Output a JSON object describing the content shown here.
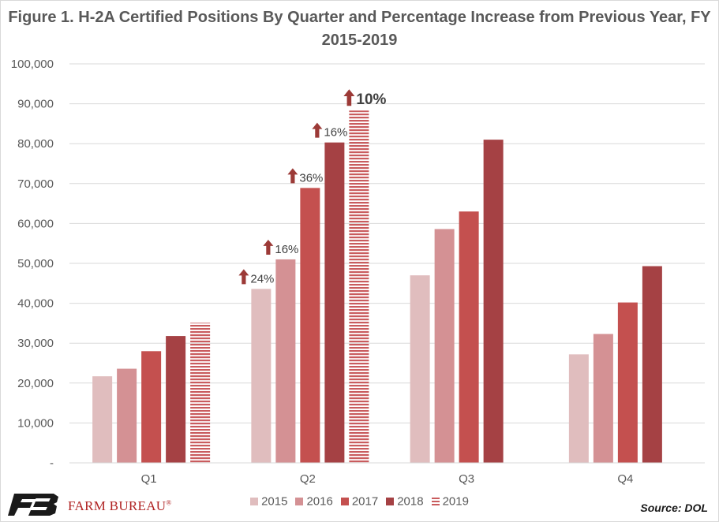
{
  "title": "Figure 1. H-2A Certified Positions By Quarter and Percentage Increase from Previous Year, FY 2015-2019",
  "source": "Source: DOL",
  "logo_text": "FARM BUREAU",
  "logo_mark": "®",
  "colors": {
    "2015": "#e0bdbe",
    "2016": "#d49194",
    "2017": "#c4504f",
    "2018": "#a54144",
    "2019": "#c95c5e",
    "arrow": "#9c3a37",
    "grid": "#d9d9d9",
    "logo": "#b02323"
  },
  "chart_data": {
    "type": "bar",
    "title": "Figure 1. H-2A Certified Positions By Quarter and Percentage Increase from Previous Year, FY 2015-2019",
    "xlabel": "",
    "ylabel": "",
    "ylim": [
      0,
      100000
    ],
    "y_ticks": [
      0,
      10000,
      20000,
      30000,
      40000,
      50000,
      60000,
      70000,
      80000,
      90000,
      100000
    ],
    "y_tick_labels": [
      "-",
      "10,000",
      "20,000",
      "30,000",
      "40,000",
      "50,000",
      "60,000",
      "70,000",
      "80,000",
      "90,000",
      "100,000"
    ],
    "grid": true,
    "legend_position": "bottom",
    "categories": [
      "Q1",
      "Q2",
      "Q3",
      "Q4"
    ],
    "series": [
      {
        "name": "2015",
        "values": [
          21700,
          43600,
          47000,
          27200
        ],
        "pattern": "solid"
      },
      {
        "name": "2016",
        "values": [
          23600,
          51000,
          58600,
          32300
        ],
        "pattern": "solid"
      },
      {
        "name": "2017",
        "values": [
          28000,
          68900,
          63000,
          40200
        ],
        "pattern": "solid"
      },
      {
        "name": "2018",
        "values": [
          31800,
          80300,
          81000,
          49300
        ],
        "pattern": "solid"
      },
      {
        "name": "2019",
        "values": [
          35100,
          88300,
          null,
          null
        ],
        "pattern": "striped"
      }
    ],
    "annotations": [
      {
        "category": "Q2",
        "series": "2015",
        "label": "24%",
        "bold": false
      },
      {
        "category": "Q2",
        "series": "2016",
        "label": "16%",
        "bold": false
      },
      {
        "category": "Q2",
        "series": "2017",
        "label": "36%",
        "bold": false
      },
      {
        "category": "Q2",
        "series": "2018",
        "label": "16%",
        "bold": false
      },
      {
        "category": "Q2",
        "series": "2019",
        "label": "10%",
        "bold": true
      }
    ]
  }
}
